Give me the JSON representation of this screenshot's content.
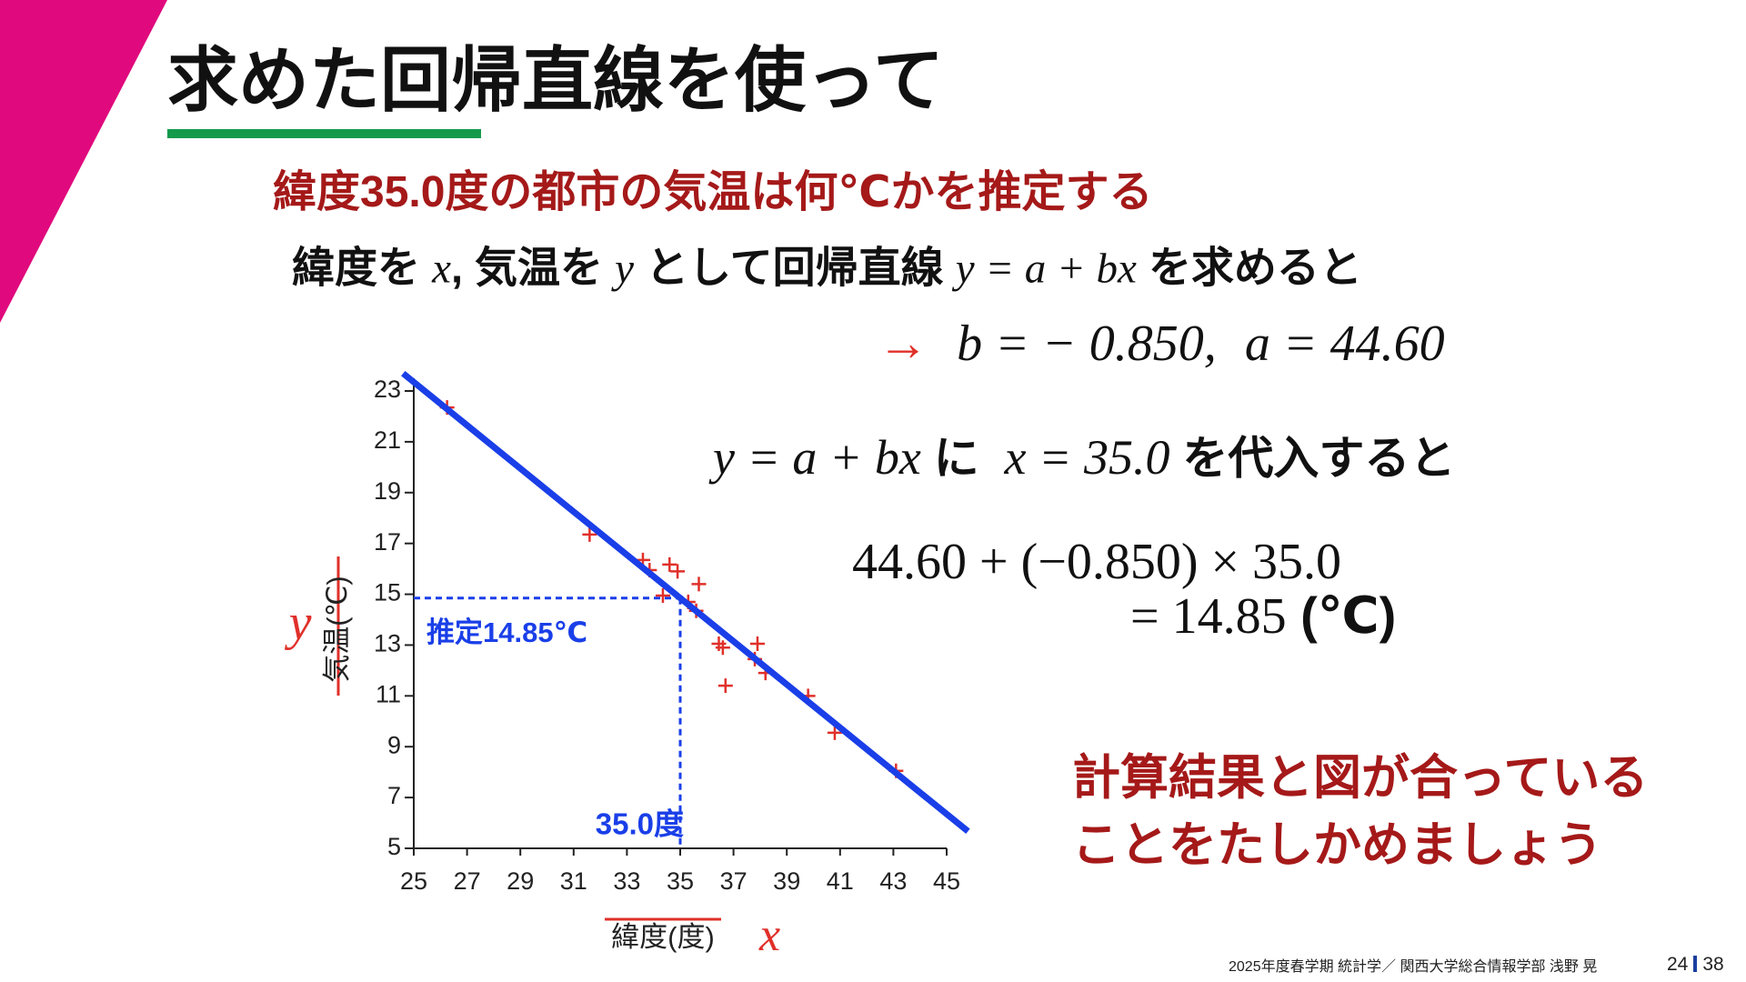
{
  "title": "求めた回帰直線を使って",
  "question": "緯度35.0度の都市の気温は何℃かを推定する",
  "line1": [
    "緯度を",
    "x",
    ", 気温を",
    "y",
    "として回帰直線",
    "y = a + bx",
    "を求めると"
  ],
  "result": [
    "→",
    "b = − 0.850,",
    "a = 44.60"
  ],
  "line2": [
    "y = a + bx",
    "に",
    "x = 35.0",
    "を代入すると"
  ],
  "calc1": "44.60 + (−0.850) × 35.0",
  "calc2": [
    "= 14.85",
    "(℃)"
  ],
  "note": [
    "計算結果と図が合っている",
    "ことをたしかめましょう"
  ],
  "footer": {
    "text": "2025年度春学期  統計学／ 関西大学総合情報学部  浅野  晃",
    "page": "24",
    "total": "38"
  },
  "chart_data": {
    "type": "scatter",
    "xlabel": "緯度(度)",
    "ylabel": "気温(℃)",
    "xsymbol": "x",
    "ysymbol": "y",
    "color": "#e0302a",
    "x": [
      26.25,
      31.6,
      33.6,
      33.85,
      34.6,
      34.9,
      35.7,
      34.35,
      35.3,
      35.6,
      36.45,
      36.6,
      37.9,
      37.8,
      38.2,
      36.7,
      39.8,
      40.8,
      43.1
    ],
    "values": [
      22.35,
      17.35,
      16.35,
      15.95,
      16.17,
      15.9,
      15.4,
      14.95,
      14.7,
      14.35,
      13.05,
      12.9,
      13.05,
      12.45,
      11.9,
      11.4,
      11.0,
      9.55,
      8.05
    ],
    "xlim": [
      25,
      45
    ],
    "xticks": [
      25,
      27,
      29,
      31,
      33,
      35,
      37,
      39,
      41,
      43,
      45
    ],
    "ylim": [
      5,
      23
    ],
    "yticks": [
      5,
      7,
      9,
      11,
      13,
      15,
      17,
      19,
      21,
      23
    ],
    "regression": {
      "intercept": 44.6,
      "slope": -0.85,
      "color": "#1a3fe8"
    },
    "estimate": {
      "x": 35,
      "y": 14.85,
      "x_label": "35.0度",
      "y_label": "推定14.85℃",
      "color": "#1a3fe8"
    }
  }
}
